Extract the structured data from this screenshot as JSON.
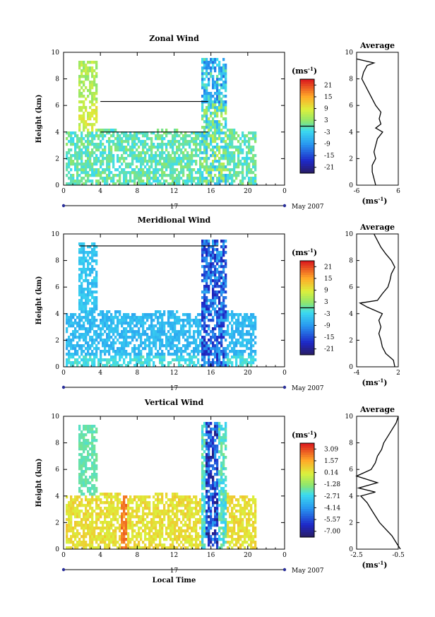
{
  "chart_data": [
    {
      "type": "heatmap",
      "title": "Zonal Wind",
      "ylabel": "Height (km)",
      "xlabel": "",
      "x_ticks": [
        "0",
        "4",
        "8",
        "12",
        "16",
        "20",
        "0"
      ],
      "y_ticks": [
        "0",
        "2",
        "4",
        "6",
        "8",
        "10"
      ],
      "xlim": [
        0,
        24
      ],
      "ylim": [
        0,
        10
      ],
      "date_day": "17",
      "date_month": "May 2007",
      "colorbar": {
        "unit_base": "(ms",
        "unit_exp": "-1",
        "unit_close": ")",
        "tick_labels": [
          "21",
          "15",
          "9",
          "3",
          "-3",
          "-9",
          "-15",
          "-21"
        ],
        "range": [
          -24,
          24
        ]
      },
      "average_profile": {
        "title": "Average",
        "x_ticks": [
          "-6",
          "6"
        ],
        "xlim": [
          -6,
          6
        ],
        "x_unit_base": "(ms",
        "x_unit_exp": "-1",
        "x_unit_close": ")",
        "height": [
          0,
          0.5,
          1,
          1.5,
          2,
          2.5,
          3,
          3.5,
          4,
          4.3,
          4.6,
          5,
          5.5,
          6,
          6.5,
          7,
          7.5,
          8,
          8.5,
          9,
          9.2,
          9.5
        ],
        "values": [
          -0.5,
          -1,
          -1.5,
          -1.5,
          -0.5,
          -1,
          -0.5,
          0,
          1.5,
          -0.5,
          1,
          0.5,
          1,
          -0.5,
          -1.5,
          -2.5,
          -3.5,
          -4.5,
          -4,
          -3,
          -1,
          -6
        ]
      }
    },
    {
      "type": "heatmap",
      "title": "Meridional Wind",
      "ylabel": "Height (km)",
      "xlabel": "",
      "x_ticks": [
        "0",
        "4",
        "8",
        "12",
        "16",
        "20",
        "0"
      ],
      "y_ticks": [
        "0",
        "2",
        "4",
        "6",
        "8",
        "10"
      ],
      "xlim": [
        0,
        24
      ],
      "ylim": [
        0,
        10
      ],
      "date_day": "17",
      "date_month": "May 2007",
      "colorbar": {
        "unit_base": "(ms",
        "unit_exp": "-1",
        "unit_close": ")",
        "tick_labels": [
          "21",
          "15",
          "9",
          "3",
          "-3",
          "-9",
          "-15",
          "-21"
        ],
        "range": [
          -24,
          24
        ]
      },
      "average_profile": {
        "title": "Average",
        "x_ticks": [
          "-4",
          "2"
        ],
        "xlim": [
          -4,
          2
        ],
        "x_unit_base": "(ms",
        "x_unit_exp": "-1",
        "x_unit_close": ")",
        "height": [
          0,
          0.5,
          1,
          1.5,
          2,
          2.5,
          3,
          3.5,
          4,
          4.5,
          4.8,
          5,
          5.5,
          6,
          6.5,
          7,
          7.5,
          8,
          8.5,
          9,
          9.5,
          10
        ],
        "values": [
          1.5,
          1.3,
          0.2,
          -0.3,
          -0.5,
          -0.8,
          -0.5,
          -0.8,
          -0.3,
          -2.5,
          -3.5,
          -1,
          -0.3,
          0.5,
          0.8,
          1,
          1.5,
          1,
          0.2,
          -0.5,
          -1,
          -1.5
        ]
      }
    },
    {
      "type": "heatmap",
      "title": "Vertical Wind",
      "ylabel": "Height (km)",
      "xlabel": "Local Time",
      "x_ticks": [
        "0",
        "4",
        "8",
        "12",
        "16",
        "20",
        "0"
      ],
      "y_ticks": [
        "0",
        "2",
        "4",
        "6",
        "8",
        "10"
      ],
      "xlim": [
        0,
        24
      ],
      "ylim": [
        0,
        10
      ],
      "date_day": "17",
      "date_month": "May 2007",
      "colorbar": {
        "unit_base": "(ms",
        "unit_exp": "-1",
        "unit_close": ")",
        "tick_labels": [
          "3.09",
          "1.57",
          "0.14",
          "-1.28",
          "-2.71",
          "-4.14",
          "-5.57",
          "-7.00"
        ],
        "range": [
          -7.71,
          3.86
        ]
      },
      "average_profile": {
        "title": "Average",
        "x_ticks": [
          "-2.5",
          "-0.5"
        ],
        "xlim": [
          -2.5,
          -0.5
        ],
        "x_unit_base": "(ms",
        "x_unit_exp": "-1",
        "x_unit_close": ")",
        "height": [
          0,
          0.5,
          1,
          1.5,
          2,
          2.5,
          3,
          3.5,
          4,
          4.3,
          4.6,
          5,
          5.5,
          6,
          6.5,
          7,
          7.5,
          8,
          8.5,
          9,
          9.5,
          10
        ],
        "values": [
          -0.4,
          -0.6,
          -0.8,
          -1.1,
          -1.4,
          -1.6,
          -1.8,
          -2,
          -2.3,
          -1.6,
          -2.4,
          -1.5,
          -2.5,
          -1.8,
          -1.6,
          -1.5,
          -1.3,
          -1.2,
          -1,
          -0.8,
          -0.6,
          -0.5
        ]
      }
    }
  ]
}
